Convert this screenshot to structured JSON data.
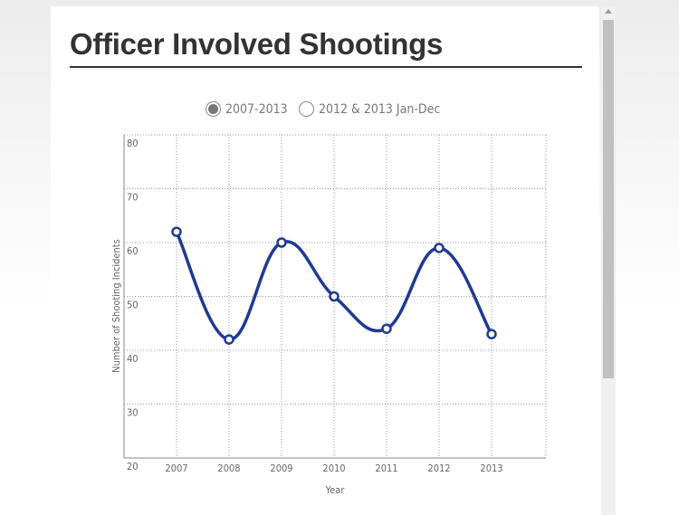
{
  "title": "Officer Involved Shootings",
  "options": [
    {
      "label": "2007-2013",
      "selected": true
    },
    {
      "label": "2012 & 2013 Jan-Dec",
      "selected": false
    }
  ],
  "chart_data": {
    "type": "line",
    "categories": [
      "2007",
      "2008",
      "2009",
      "2010",
      "2011",
      "2012",
      "2013"
    ],
    "values": [
      62,
      42,
      60,
      50,
      44,
      59,
      43
    ],
    "xlabel": "Year",
    "ylabel": "Number of Shooting Incidents",
    "ylim": [
      20,
      80
    ],
    "yticks": [
      "20",
      "30",
      "40",
      "50",
      "60",
      "70",
      "80"
    ],
    "grid": true,
    "smooth": true,
    "color": "#1f3a93"
  }
}
